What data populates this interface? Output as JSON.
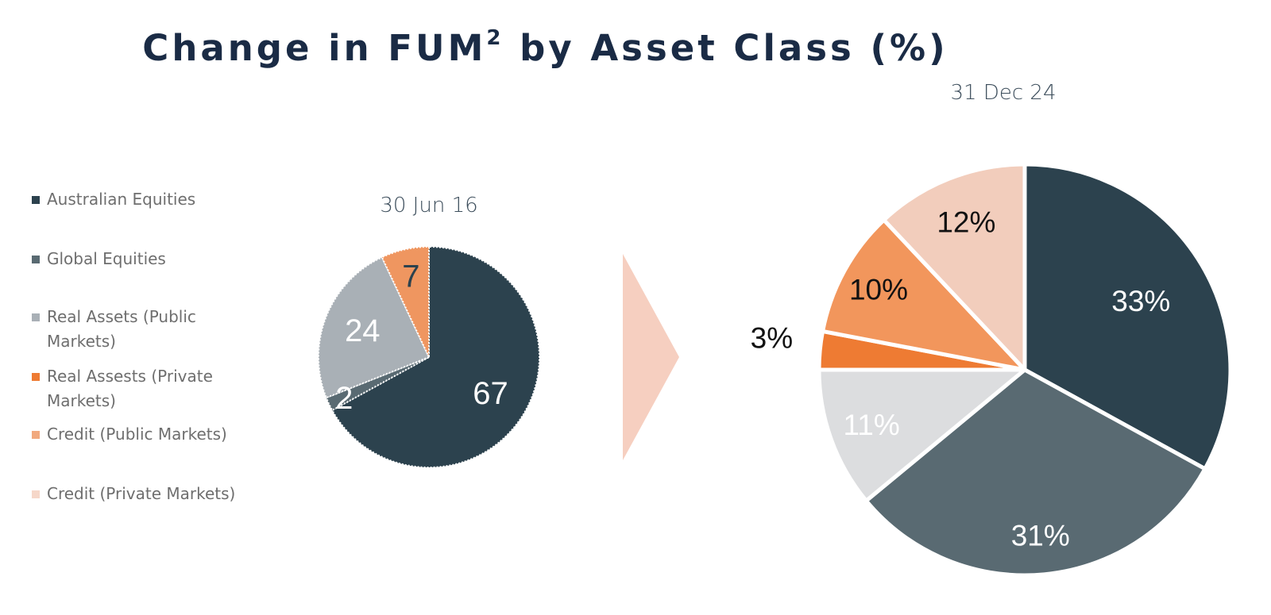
{
  "title": {
    "main": "Change in FUM",
    "superscript": "2",
    "suffix": " by Asset Class (%)"
  },
  "legend": [
    {
      "label": "Australian Equities",
      "color": "#2c424e"
    },
    {
      "label": "Global Equities",
      "color": "#596a72"
    },
    {
      "label": "Real Assets (Public Markets)",
      "color": "#a9b0b6"
    },
    {
      "label": "Real Assests (Private Markets)",
      "color": "#ee7b33"
    },
    {
      "label": "Credit (Public Markets)",
      "color": "#f1a97e"
    },
    {
      "label": "Credit (Private Markets)",
      "color": "#f6d7c9"
    }
  ],
  "chart_data": [
    {
      "type": "pie",
      "title": "30 Jun 16",
      "slices": [
        {
          "label": "Australian Equities",
          "value": 67,
          "display": "67",
          "color": "#2c424e",
          "text_color": "#ffffff"
        },
        {
          "label": "Global Equities",
          "value": 2,
          "display": "2",
          "color": "#596a72",
          "text_color": "#ffffff"
        },
        {
          "label": "Real Assets (Public Markets)",
          "value": 24,
          "display": "24",
          "color": "#a9b0b6",
          "text_color": "#ffffff"
        },
        {
          "label": "Credit (Public Markets)",
          "value": 7,
          "display": "7",
          "color": "#ef9660",
          "text_color": "#2c424e"
        }
      ]
    },
    {
      "type": "pie",
      "title": "31 Dec 24",
      "slices": [
        {
          "label": "Australian Equities",
          "value": 33,
          "display": "33%",
          "color": "#2c424e",
          "text_color": "#ffffff"
        },
        {
          "label": "Global Equities",
          "value": 31,
          "display": "31%",
          "color": "#596a72",
          "text_color": "#ffffff"
        },
        {
          "label": "Real Assets (Public Markets)",
          "value": 11,
          "display": "11%",
          "color": "#dcdddf",
          "text_color": "#ffffff"
        },
        {
          "label": "Real Assests (Private Markets)",
          "value": 3,
          "display": "3%",
          "color": "#ee7b33",
          "text_color": "#111111"
        },
        {
          "label": "Credit (Public Markets)",
          "value": 10,
          "display": "10%",
          "color": "#f2965c",
          "text_color": "#111111"
        },
        {
          "label": "Credit (Private Markets)",
          "value": 12,
          "display": "12%",
          "color": "#f2cdbc",
          "text_color": "#111111"
        }
      ]
    }
  ],
  "arrow": {
    "color": "#f6cfc0"
  }
}
